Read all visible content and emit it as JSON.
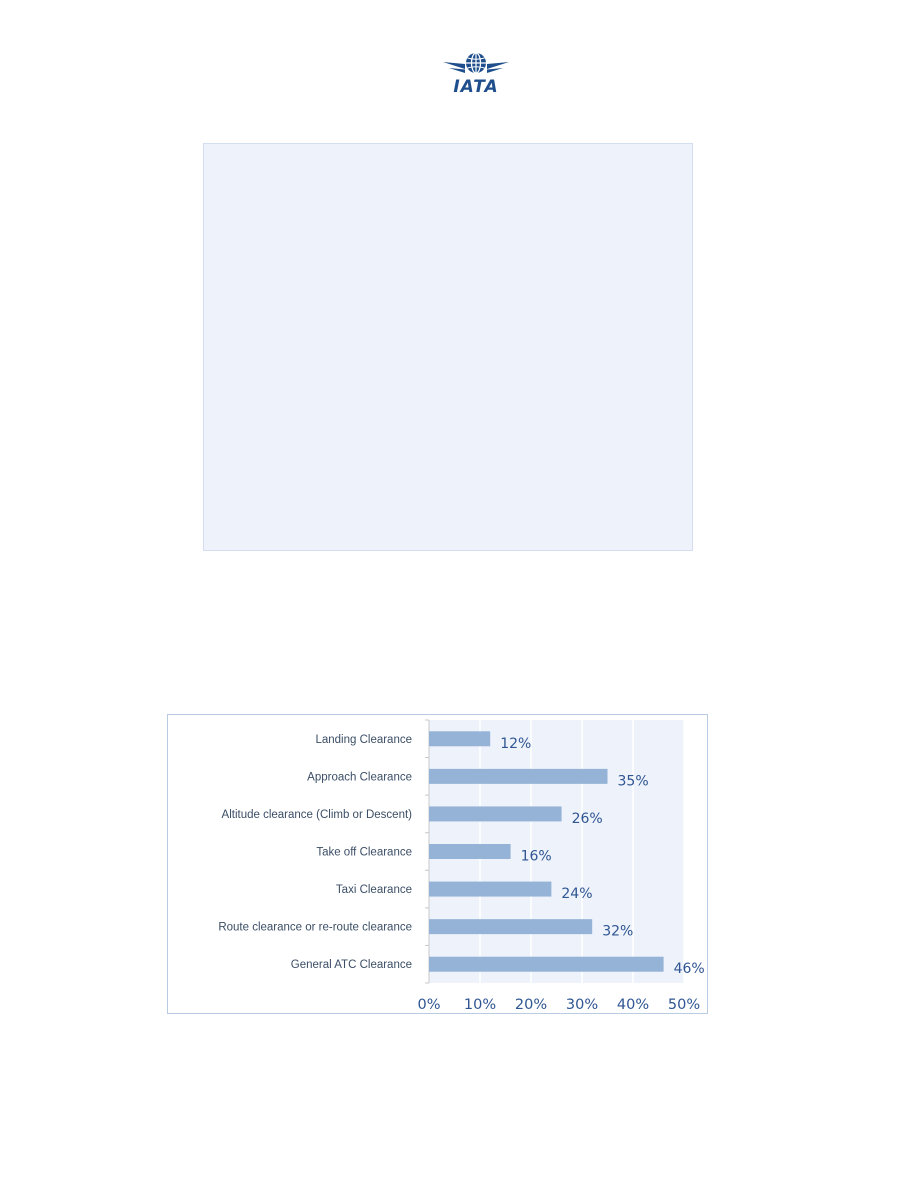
{
  "logo": {
    "text": "IATA"
  },
  "chart_data": {
    "type": "bar",
    "orientation": "horizontal",
    "categories": [
      "Landing Clearance",
      "Approach Clearance",
      "Altitude clearance (Climb or Descent)",
      "Take off Clearance",
      "Taxi Clearance",
      "Route clearance or re-route clearance",
      "General ATC Clearance"
    ],
    "values": [
      12,
      35,
      26,
      16,
      24,
      32,
      46
    ],
    "value_labels": [
      "12%",
      "35%",
      "26%",
      "16%",
      "24%",
      "32%",
      "46%"
    ],
    "xlim": [
      0,
      50
    ],
    "x_ticks": [
      0,
      10,
      20,
      30,
      40,
      50
    ],
    "x_tick_labels": [
      "0%",
      "10%",
      "20%",
      "30%",
      "40%",
      "50%"
    ],
    "grid": true,
    "bar_color": "#95b3d7",
    "plot_background": "#eef3fb",
    "gridline_color": "#ffffff",
    "label_color": "#2f5592"
  }
}
